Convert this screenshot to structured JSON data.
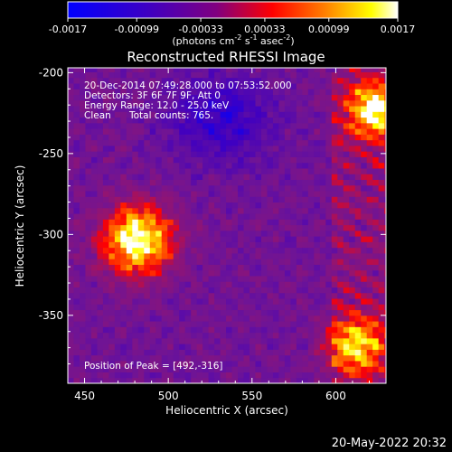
{
  "colorbar": {
    "tick_labels": [
      "-0.0017",
      "-0.00099",
      "-0.00033",
      "0.00033",
      "0.00099",
      "0.0017"
    ],
    "tick_values": [
      -0.0017,
      -0.00099,
      -0.00033,
      0.00033,
      0.00099,
      0.0017
    ],
    "range": [
      -0.0017,
      0.0017
    ],
    "units_base": "(photons cm",
    "units_exp1": "-2",
    "units_mid": " s",
    "units_exp2": "-1",
    "units_tail": " asec",
    "units_exp3": "-2",
    "units_close": ")",
    "colormap": [
      "#0000ff",
      "#4000c0",
      "#800080",
      "#ff0000",
      "#ff8000",
      "#ffff00",
      "#ffffff"
    ]
  },
  "chart_data": {
    "type": "heatmap",
    "title": "Reconstructed RHESSI Image",
    "xlabel": "Heliocentric X (arcsec)",
    "ylabel": "Heliocentric Y (arcsec)",
    "xlim": [
      440,
      630
    ],
    "ylim": [
      -392,
      -197
    ],
    "x_ticks": [
      450,
      500,
      550,
      600
    ],
    "y_ticks": [
      -200,
      -250,
      -300,
      -350
    ],
    "x_tick_labels": [
      "450",
      "500",
      "550",
      "600"
    ],
    "y_tick_labels": [
      "-200",
      "-250",
      "-300",
      "-350"
    ],
    "peak": [
      492,
      -316
    ],
    "sources": [
      {
        "x": 480,
        "y": -305,
        "level": 1.0
      },
      {
        "x": 622,
        "y": -225,
        "level": 0.8
      },
      {
        "x": 610,
        "y": -370,
        "level": 0.75
      }
    ]
  },
  "annotations": {
    "line1": "20-Dec-2014 07:49:28.000 to 07:53:52.000",
    "line2": "Detectors: 3F 6F 7F 9F, Att 0",
    "line3": "Energy Range: 12.0 - 25.0 keV",
    "line4_a": "Clean",
    "line4_b": "Total counts: 765.",
    "peak_label": "Position of Peak = [492,-316]"
  },
  "footer": {
    "timestamp": "20-May-2022 20:32"
  }
}
